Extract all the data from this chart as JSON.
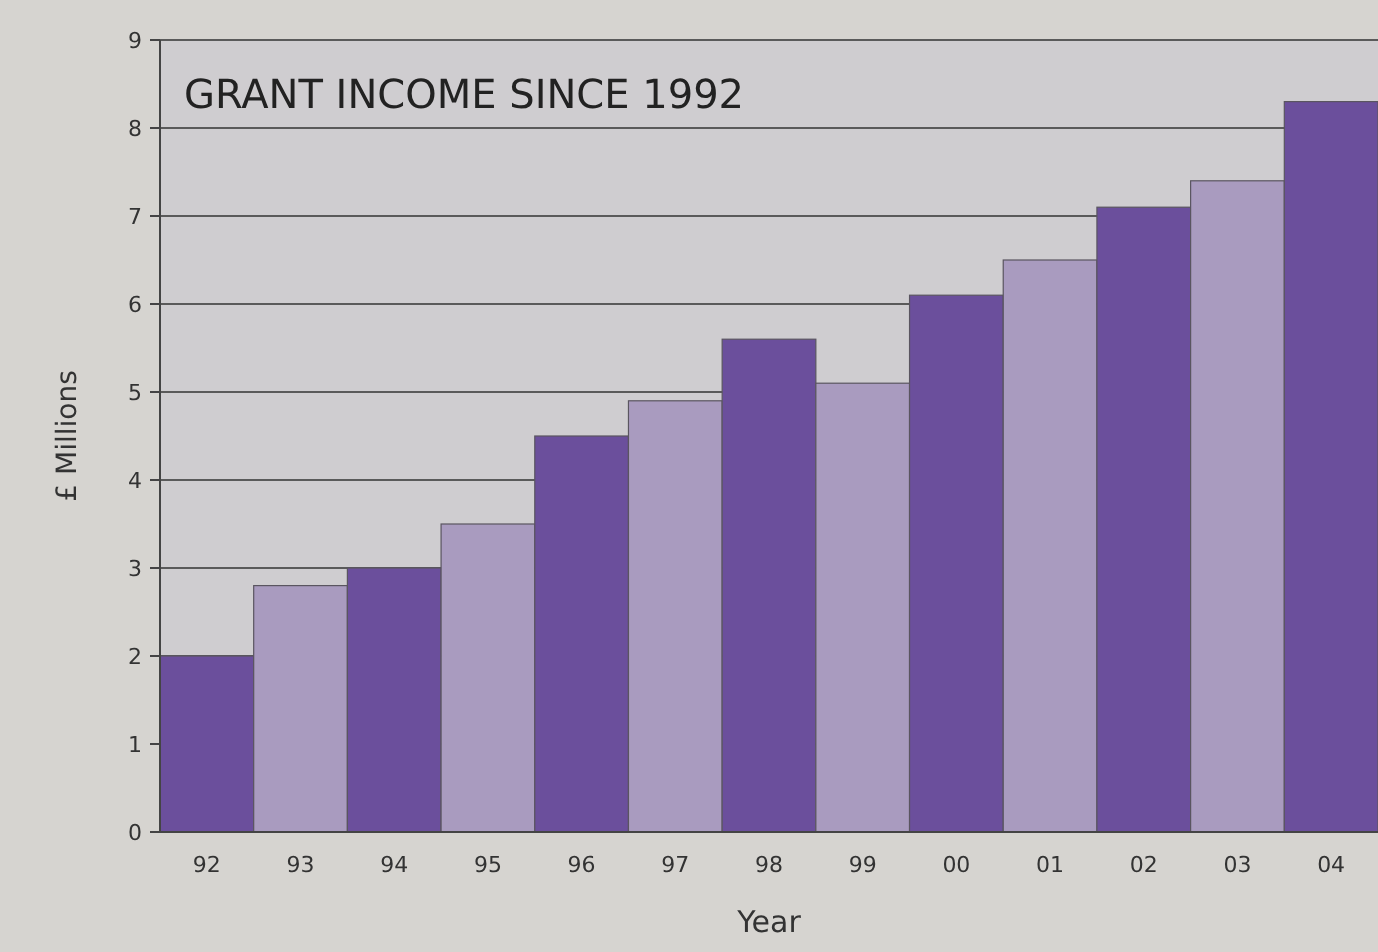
{
  "chart_data": {
    "type": "bar",
    "title": "GRANT INCOME SINCE 1992",
    "xlabel": "Year",
    "ylabel": "£ Millions",
    "categories": [
      "92",
      "93",
      "94",
      "95",
      "96",
      "97",
      "98",
      "99",
      "00",
      "01",
      "02",
      "03",
      "04"
    ],
    "values": [
      2.0,
      2.8,
      3.0,
      3.5,
      4.5,
      4.9,
      5.6,
      5.1,
      6.1,
      6.5,
      7.1,
      7.4,
      8.3
    ],
    "colors": [
      "#6b4f9c",
      "#a99bbf",
      "#6b4f9c",
      "#a99bbf",
      "#6b4f9c",
      "#a99bbf",
      "#6b4f9c",
      "#a99bbf",
      "#6b4f9c",
      "#a99bbf",
      "#6b4f9c",
      "#a99bbf",
      "#6b4f9c"
    ],
    "ylim": [
      0,
      9
    ],
    "yticks": [
      0,
      1,
      2,
      3,
      4,
      5,
      6,
      7,
      8,
      9
    ],
    "grid": "y"
  }
}
